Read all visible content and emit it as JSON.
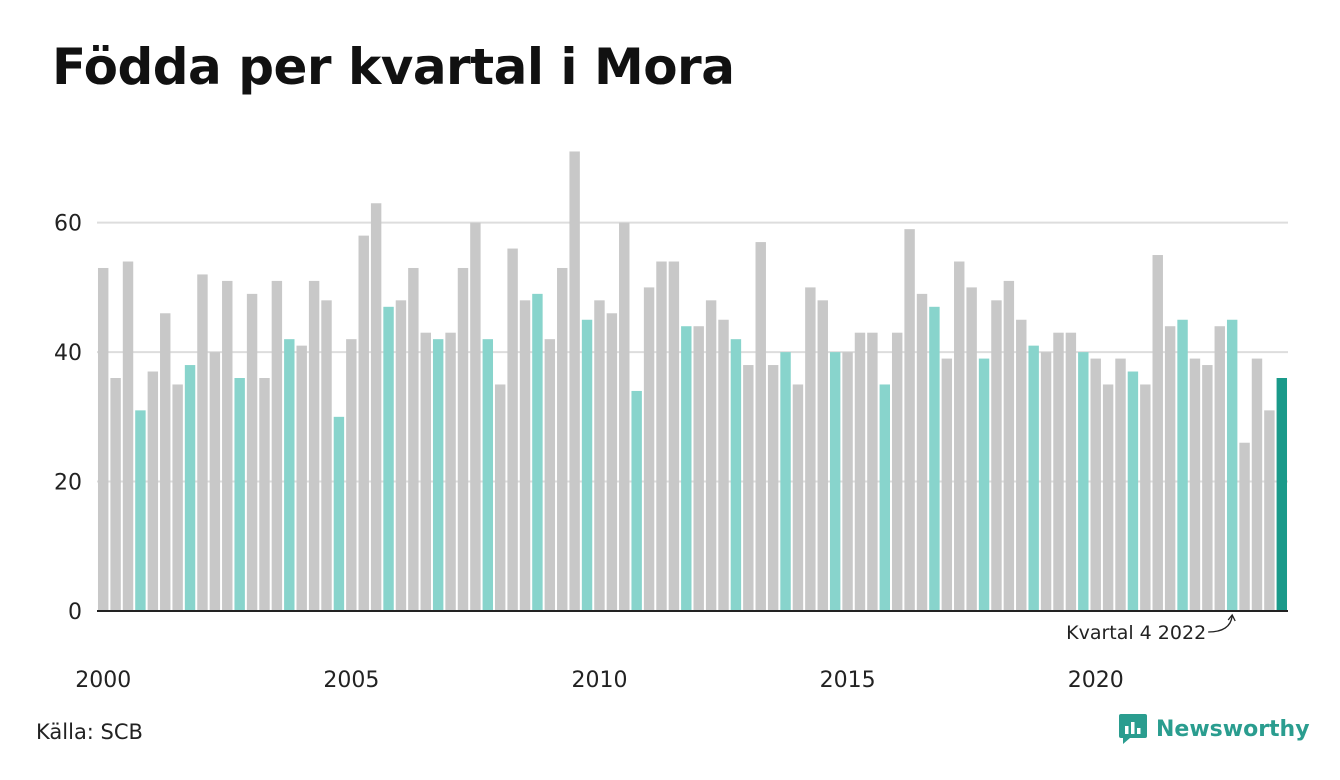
{
  "title": "Födda per kvartal i Mora",
  "source": "Källa: SCB",
  "brand": {
    "name": "Newsworthy",
    "icon": "newsworthy-logo-icon"
  },
  "colors": {
    "bar_default": "#c8c8c8",
    "bar_q4": "#88d4cc",
    "bar_latest": "#1a9a8a",
    "grid": "#dddddd",
    "axis": "#222222"
  },
  "chart_data": {
    "type": "bar",
    "title": "Födda per kvartal i Mora",
    "xlabel": "",
    "ylabel": "",
    "ylim": [
      0,
      72
    ],
    "yticks": [
      0,
      20,
      40,
      60
    ],
    "xtick_labels": [
      "2000",
      "2005",
      "2010",
      "2015",
      "2020"
    ],
    "grid": true,
    "start": "2000 Q1",
    "categories": [
      "2000 Q1",
      "2000 Q2",
      "2000 Q3",
      "2000 Q4",
      "2001 Q1",
      "2001 Q2",
      "2001 Q3",
      "2001 Q4",
      "2002 Q1",
      "2002 Q2",
      "2002 Q3",
      "2002 Q4",
      "2003 Q1",
      "2003 Q2",
      "2003 Q3",
      "2003 Q4",
      "2004 Q1",
      "2004 Q2",
      "2004 Q3",
      "2004 Q4",
      "2005 Q1",
      "2005 Q2",
      "2005 Q3",
      "2005 Q4",
      "2006 Q1",
      "2006 Q2",
      "2006 Q3",
      "2006 Q4",
      "2007 Q1",
      "2007 Q2",
      "2007 Q3",
      "2007 Q4",
      "2008 Q1",
      "2008 Q2",
      "2008 Q3",
      "2008 Q4",
      "2009 Q1",
      "2009 Q2",
      "2009 Q3",
      "2009 Q4",
      "2010 Q1",
      "2010 Q2",
      "2010 Q3",
      "2010 Q4",
      "2011 Q1",
      "2011 Q2",
      "2011 Q3",
      "2011 Q4",
      "2012 Q1",
      "2012 Q2",
      "2012 Q3",
      "2012 Q4",
      "2013 Q1",
      "2013 Q2",
      "2013 Q3",
      "2013 Q4",
      "2014 Q1",
      "2014 Q2",
      "2014 Q3",
      "2014 Q4",
      "2015 Q1",
      "2015 Q2",
      "2015 Q3",
      "2015 Q4",
      "2016 Q1",
      "2016 Q2",
      "2016 Q3",
      "2016 Q4",
      "2017 Q1",
      "2017 Q2",
      "2017 Q3",
      "2017 Q4",
      "2018 Q1",
      "2018 Q2",
      "2018 Q3",
      "2018 Q4",
      "2019 Q1",
      "2019 Q2",
      "2019 Q3",
      "2019 Q4",
      "2020 Q1",
      "2020 Q2",
      "2020 Q3",
      "2020 Q4",
      "2021 Q1",
      "2021 Q2",
      "2021 Q3",
      "2021 Q4",
      "2022 Q1",
      "2022 Q2",
      "2022 Q3",
      "2022 Q4",
      "2023 Q1",
      "2023 Q2",
      "2023 Q3",
      "2023 Q4"
    ],
    "values": [
      53,
      36,
      54,
      31,
      37,
      46,
      35,
      38,
      52,
      40,
      51,
      36,
      49,
      36,
      51,
      42,
      41,
      51,
      48,
      30,
      42,
      58,
      63,
      47,
      48,
      53,
      43,
      42,
      43,
      53,
      60,
      42,
      35,
      56,
      48,
      49,
      42,
      53,
      71,
      45,
      48,
      46,
      60,
      34,
      50,
      54,
      54,
      44,
      44,
      48,
      45,
      42,
      38,
      57,
      38,
      40,
      35,
      50,
      48,
      40,
      40,
      43,
      43,
      35,
      43,
      59,
      49,
      47,
      39,
      54,
      50,
      39,
      48,
      51,
      45,
      41,
      40,
      43,
      43,
      40,
      39,
      35,
      39,
      37,
      35,
      55,
      44,
      45,
      39,
      38,
      44,
      45,
      26,
      39,
      31,
      36
    ],
    "annotation": {
      "text": "Kvartal 4 2022",
      "target": "2022 Q4"
    }
  }
}
